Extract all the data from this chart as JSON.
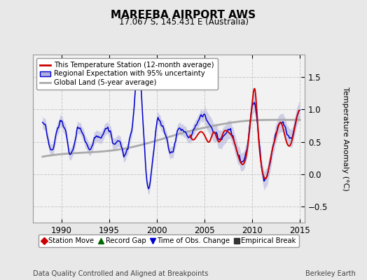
{
  "title": "MAREEBA AIRPORT AWS",
  "subtitle": "17.067 S, 145.431 E (Australia)",
  "ylabel": "Temperature Anomaly (°C)",
  "xlabel_left": "Data Quality Controlled and Aligned at Breakpoints",
  "xlabel_right": "Berkeley Earth",
  "xlim": [
    1987.0,
    2015.5
  ],
  "ylim": [
    -0.75,
    1.85
  ],
  "yticks": [
    -0.5,
    0,
    0.5,
    1.0,
    1.5
  ],
  "xticks": [
    1990,
    1995,
    2000,
    2005,
    2010,
    2015
  ],
  "bg_color": "#e8e8e8",
  "plot_bg_color": "#f2f2f2",
  "red_color": "#cc0000",
  "blue_color": "#0000cc",
  "blue_fill_color": "#b0b0dd",
  "gray_color": "#aaaaaa",
  "legend_items": [
    "This Temperature Station (12-month average)",
    "Regional Expectation with 95% uncertainty",
    "Global Land (5-year average)"
  ],
  "marker_legend": [
    {
      "label": "Station Move",
      "color": "#cc0000",
      "marker": "D"
    },
    {
      "label": "Record Gap",
      "color": "#006600",
      "marker": "^"
    },
    {
      "label": "Time of Obs. Change",
      "color": "#0000cc",
      "marker": "v"
    },
    {
      "label": "Empirical Break",
      "color": "#333333",
      "marker": "s"
    }
  ]
}
